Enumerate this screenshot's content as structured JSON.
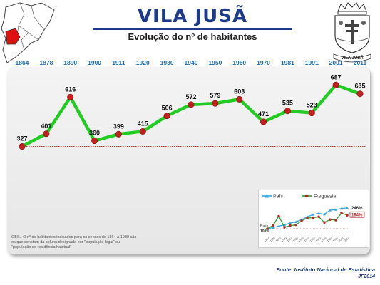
{
  "header": {
    "title": "VILA JUSÃ",
    "subtitle": "Evolução do nº de habitantes"
  },
  "note": "OBS.: O nº de habitantes indicados para os censos de 1864 a 1930 são os que constam da coluna designada por \"população legal\" ou \"população de residência habitual\"",
  "footer": {
    "source": "Fonte: Instituto Nacional de Estatística",
    "credit": "JF2014"
  },
  "crest": {
    "motto": "VILA JUSÃ"
  },
  "colors": {
    "title": "#1e3a8a",
    "year_labels": "#1e6fb8",
    "series_line": "#22cc22",
    "series_marker": "#c41e1e",
    "reference_line": "#e03030",
    "map_highlight": "#e01010"
  },
  "chart_data": {
    "type": "line",
    "title": "Evolução do nº de habitantes",
    "categories": [
      "1864",
      "1878",
      "1890",
      "1900",
      "1911",
      "1920",
      "1930",
      "1940",
      "1950",
      "1960",
      "1970",
      "1981",
      "1991",
      "2001",
      "2011"
    ],
    "series": [
      {
        "values": [
          327,
          401,
          616,
          360,
          399,
          415,
          506,
          572,
          579,
          603,
          471,
          535,
          523,
          687,
          635
        ]
      }
    ],
    "reference_value": 327,
    "xlabel": "",
    "ylabel": "",
    "grid": false,
    "inset": {
      "type": "line",
      "legend": [
        "País",
        "Freguesia"
      ],
      "base_label": "Base",
      "base_value_label": "100%",
      "categories": [
        "1864",
        "1878",
        "1890",
        "1900",
        "1911",
        "1920",
        "1930",
        "1940",
        "1950",
        "1960",
        "1970",
        "1981",
        "1991",
        "2001",
        "2011"
      ],
      "series": [
        {
          "name": "País",
          "values": [
            100,
            108,
            118,
            127,
            140,
            148,
            163,
            183,
            199,
            208,
            201,
            230,
            234,
            242,
            246
          ]
        },
        {
          "name": "Freguesia",
          "values": [
            100,
            123,
            188,
            110,
            122,
            127,
            155,
            175,
            177,
            184,
            144,
            164,
            160,
            210,
            194
          ]
        }
      ],
      "end_labels": [
        "246%",
        "194%"
      ]
    }
  }
}
